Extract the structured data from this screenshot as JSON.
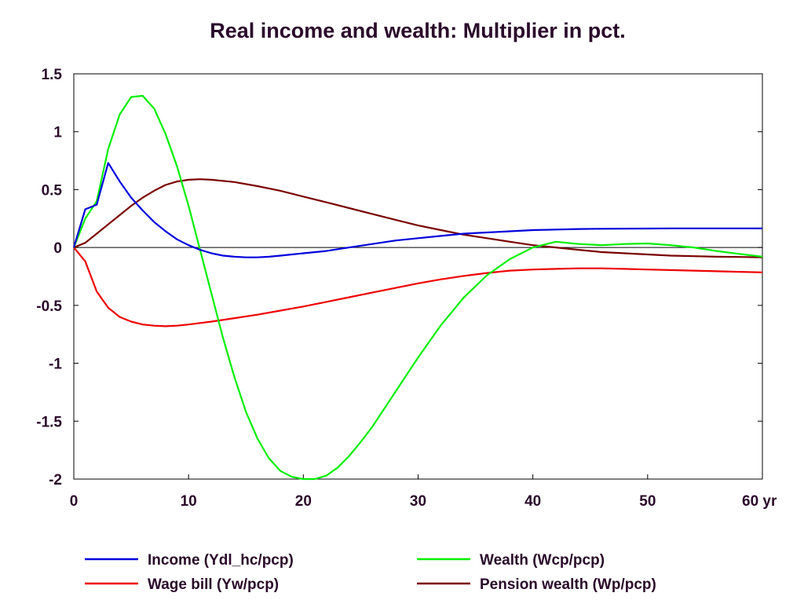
{
  "chart_data": {
    "type": "line",
    "title": "Real income and wealth: Multiplier in pct.",
    "xlabel": "",
    "ylabel": "",
    "x_unit_label": "yr",
    "xlim": [
      0,
      60
    ],
    "ylim": [
      -2,
      1.5
    ],
    "x_ticks": [
      0,
      10,
      20,
      30,
      40,
      50,
      60
    ],
    "x_tick_labels": [
      "0",
      "10",
      "20",
      "30",
      "40",
      "50",
      "60 yr"
    ],
    "y_ticks": [
      1.5,
      1,
      0.5,
      0,
      -0.5,
      -1,
      -1.5,
      -2
    ],
    "y_tick_labels": [
      "1.5",
      "1",
      "0.5",
      "0",
      "-0.5",
      "-1",
      "-1.5",
      "-2"
    ],
    "grid": false,
    "zero_line": true,
    "legend_position": "bottom",
    "series": [
      {
        "name": "Income (Ydl_hc/pcp)",
        "color": "#0000dd",
        "x": [
          0,
          1,
          2,
          3,
          4,
          5,
          6,
          7,
          8,
          9,
          10,
          11,
          12,
          13,
          14,
          15,
          16,
          17,
          18,
          19,
          20,
          22,
          24,
          26,
          28,
          30,
          32,
          34,
          36,
          38,
          40,
          42,
          44,
          46,
          48,
          50,
          52,
          54,
          56,
          58,
          60
        ],
        "y": [
          0,
          0.33,
          0.37,
          0.73,
          0.57,
          0.43,
          0.32,
          0.22,
          0.14,
          0.07,
          0.02,
          -0.02,
          -0.05,
          -0.07,
          -0.08,
          -0.085,
          -0.085,
          -0.08,
          -0.07,
          -0.06,
          -0.05,
          -0.03,
          0,
          0.03,
          0.06,
          0.08,
          0.1,
          0.12,
          0.13,
          0.14,
          0.15,
          0.155,
          0.16,
          0.162,
          0.163,
          0.164,
          0.165,
          0.165,
          0.165,
          0.165,
          0.165
        ]
      },
      {
        "name": "Wage bill (Yw/pcp)",
        "color": "#ee0000",
        "x": [
          0,
          1,
          2,
          3,
          4,
          5,
          6,
          7,
          8,
          9,
          10,
          12,
          14,
          16,
          18,
          20,
          22,
          24,
          26,
          28,
          30,
          32,
          34,
          36,
          38,
          40,
          42,
          44,
          46,
          48,
          50,
          52,
          54,
          56,
          58,
          60
        ],
        "y": [
          0,
          -0.12,
          -0.38,
          -0.52,
          -0.6,
          -0.64,
          -0.665,
          -0.675,
          -0.68,
          -0.675,
          -0.665,
          -0.64,
          -0.61,
          -0.58,
          -0.545,
          -0.51,
          -0.47,
          -0.43,
          -0.39,
          -0.35,
          -0.31,
          -0.275,
          -0.245,
          -0.22,
          -0.2,
          -0.19,
          -0.185,
          -0.18,
          -0.18,
          -0.185,
          -0.19,
          -0.195,
          -0.2,
          -0.205,
          -0.21,
          -0.215
        ]
      },
      {
        "name": "Wealth (Wcp/pcp)",
        "color": "#00ee00",
        "x": [
          0,
          1,
          2,
          3,
          4,
          5,
          6,
          7,
          8,
          9,
          10,
          11,
          12,
          13,
          14,
          15,
          16,
          17,
          18,
          19,
          20,
          21,
          22,
          23,
          24,
          25,
          26,
          28,
          30,
          32,
          34,
          36,
          38,
          40,
          42,
          44,
          46,
          48,
          50,
          52,
          54,
          56,
          58,
          60
        ],
        "y": [
          0,
          0.25,
          0.4,
          0.85,
          1.15,
          1.3,
          1.31,
          1.2,
          0.98,
          0.7,
          0.36,
          -0.02,
          -0.4,
          -0.78,
          -1.12,
          -1.42,
          -1.65,
          -1.82,
          -1.93,
          -1.98,
          -2.0,
          -2.0,
          -1.97,
          -1.9,
          -1.8,
          -1.68,
          -1.55,
          -1.25,
          -0.95,
          -0.67,
          -0.43,
          -0.24,
          -0.1,
          0.0,
          0.05,
          0.03,
          0.02,
          0.03,
          0.035,
          0.02,
          0.0,
          -0.03,
          -0.055,
          -0.08
        ]
      },
      {
        "name": "Pension wealth (Wp/pcp)",
        "color": "#7a0000",
        "x": [
          0,
          1,
          2,
          3,
          4,
          5,
          6,
          7,
          8,
          9,
          10,
          11,
          12,
          14,
          16,
          18,
          20,
          22,
          24,
          26,
          28,
          30,
          32,
          34,
          36,
          38,
          40,
          42,
          44,
          46,
          48,
          50,
          52,
          54,
          56,
          58,
          60
        ],
        "y": [
          0,
          0.04,
          0.12,
          0.2,
          0.28,
          0.36,
          0.43,
          0.49,
          0.54,
          0.57,
          0.585,
          0.59,
          0.585,
          0.565,
          0.53,
          0.49,
          0.44,
          0.39,
          0.34,
          0.29,
          0.24,
          0.19,
          0.15,
          0.11,
          0.08,
          0.05,
          0.02,
          0.0,
          -0.02,
          -0.04,
          -0.05,
          -0.06,
          -0.07,
          -0.075,
          -0.08,
          -0.082,
          -0.085
        ]
      }
    ]
  }
}
